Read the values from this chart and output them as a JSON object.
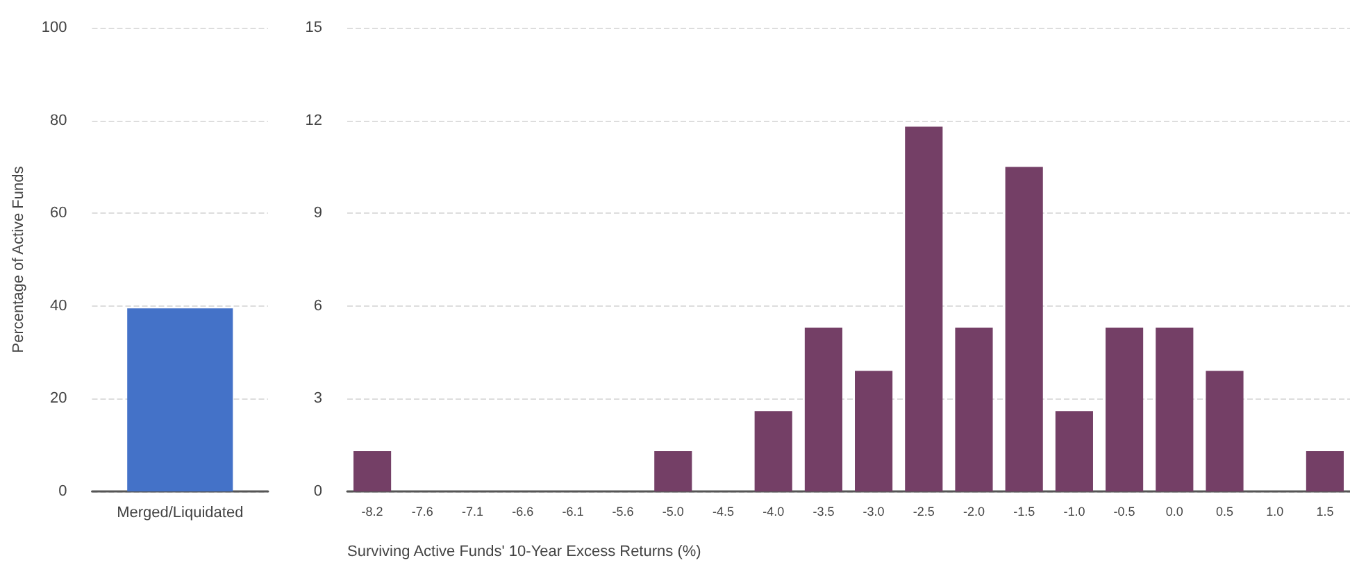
{
  "chart_data": [
    {
      "type": "bar",
      "ylabel": "Percentage of Active Funds",
      "categories": [
        "Merged/Liquidated"
      ],
      "values": [
        39.5
      ],
      "color": "#4472c8",
      "ylim": [
        0,
        100
      ],
      "yticks": [
        0,
        20,
        40,
        60,
        80,
        100
      ],
      "grid": "y"
    },
    {
      "type": "bar",
      "xlabel": "Surviving Active Funds' 10-Year Excess Returns (%)",
      "categories": [
        "-8.2",
        "-7.6",
        "-7.1",
        "-6.6",
        "-6.1",
        "-5.6",
        "-5.0",
        "-4.5",
        "-4.0",
        "-3.5",
        "-3.0",
        "-2.5",
        "-2.0",
        "-1.5",
        "-1.0",
        "-0.5",
        "0.0",
        "0.5",
        "1.0",
        "1.5"
      ],
      "values": [
        1.3,
        0,
        0,
        0,
        0,
        0,
        1.3,
        0,
        2.6,
        5.3,
        3.9,
        11.8,
        5.3,
        10.5,
        2.6,
        5.3,
        5.3,
        3.9,
        0,
        1.3
      ],
      "color": "#743f66",
      "ylim": [
        0,
        15
      ],
      "yticks": [
        0,
        3,
        6,
        9,
        12,
        15
      ],
      "grid": "y"
    }
  ]
}
